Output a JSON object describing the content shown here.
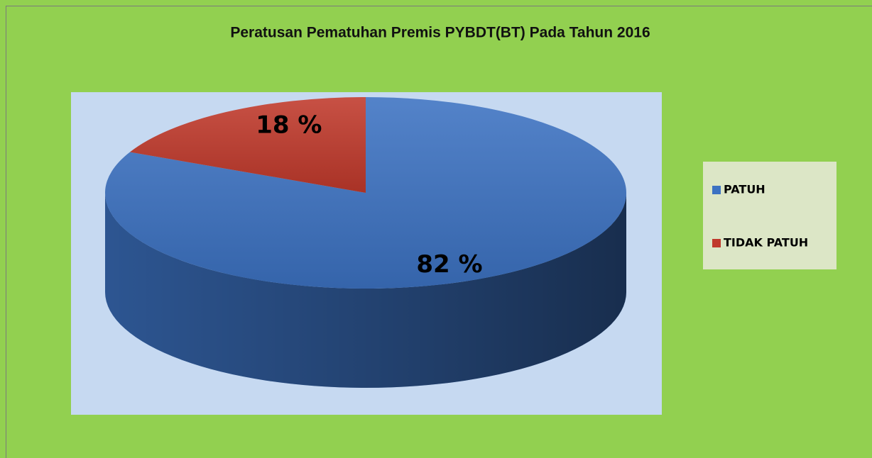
{
  "chart_data": {
    "type": "pie",
    "title": "Peratusan Pematuhan Premis PYBDT(BT) Pada Tahun 2016",
    "categories": [
      "PATUH",
      "TIDAK PATUH"
    ],
    "values": [
      82,
      18
    ],
    "value_labels": [
      "82 %",
      "18 %"
    ],
    "colors": [
      "#3c72c2",
      "#c0392b"
    ],
    "legend": "right"
  }
}
